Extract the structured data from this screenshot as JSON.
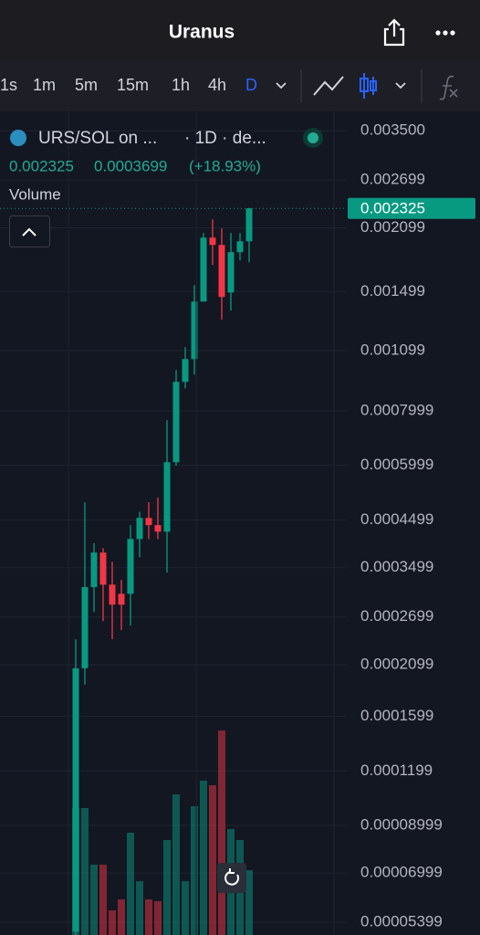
{
  "header": {
    "title": "Uranus"
  },
  "toolbar": {
    "intervals": [
      "1s",
      "1m",
      "5m",
      "15m",
      "1h",
      "4h",
      "D"
    ]
  },
  "legend": {
    "symbol": "URS/SOL on ...",
    "interval": "· 1D · de...",
    "change": "0.0003699",
    "change_pct": "(+18.93%)",
    "volume": "Volume"
  },
  "chart_data": {
    "type": "candlestick",
    "log_scale": true,
    "grid": true,
    "up_color": "#089981",
    "down_color": "#f23645",
    "ylim": [
      5.05e-05,
      0.00373
    ],
    "yticks": [
      {
        "value": 0.0035,
        "label": "0.003500"
      },
      0.002699,
      0.002099,
      0.001499,
      0.001099,
      0.0007999,
      0.0005999,
      0.0004499,
      0.0003499,
      0.0002699,
      0.0002099,
      0.0001599,
      0.0001199,
      8.999e-05,
      6.999e-05,
      5.399e-05
    ],
    "open": [
      5.14e-05,
      0.000206,
      0.000316,
      0.000379,
      0.00032,
      0.000305,
      0.000305,
      0.000407,
      0.000455,
      0.000438,
      0.000423,
      0.00061,
      0.000932,
      0.001051,
      0.001423,
      0.001993,
      0.001918,
      0.001493,
      0.001846,
      0.001955
    ],
    "high": [
      0.00024,
      0.000494,
      0.000398,
      0.000388,
      0.000361,
      0.000328,
      0.000438,
      0.00047,
      0.000494,
      0.000506,
      0.000761,
      0.000992,
      0.001119,
      0.001552,
      0.002042,
      0.002195,
      0.002092,
      0.002042,
      0.002042,
      0.00233
    ],
    "low": [
      5.05e-05,
      0.000189,
      0.000277,
      0.000264,
      0.00024,
      0.000252,
      0.000258,
      0.00037,
      0.000407,
      0.000407,
      0.000341,
      0.000599,
      0.000901,
      0.000968,
      0.001423,
      0.001725,
      0.001293,
      0.001357,
      0.001767,
      0.00175
    ],
    "close": [
      0.000206,
      0.000316,
      0.000379,
      0.00032,
      0.000288,
      0.000288,
      0.000407,
      0.000455,
      0.000438,
      0.000423,
      0.00061,
      0.000932,
      0.001051,
      0.001423,
      0.001993,
      0.001918,
      0.001458,
      0.001846,
      0.001955,
      0.002325
    ],
    "volume": [
      139,
      139,
      77,
      77,
      27,
      39,
      112,
      59,
      39,
      37,
      104,
      154,
      59,
      141,
      169,
      164,
      224,
      116,
      104,
      71
    ]
  }
}
